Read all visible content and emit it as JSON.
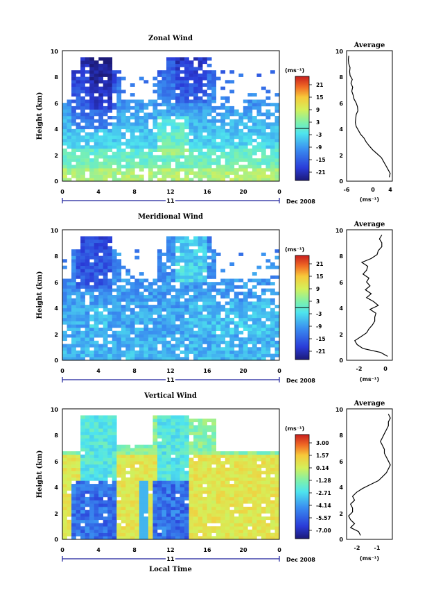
{
  "chart_data": [
    {
      "type": "heatmap",
      "title": "Zonal Wind",
      "ylabel": "Height (km)",
      "ylim": [
        0,
        10
      ],
      "xlim": [
        0,
        24
      ],
      "x_ticks": [
        "0",
        "4",
        "8",
        "12",
        "16",
        "20",
        "0"
      ],
      "y_ticks": [
        "0",
        "2",
        "4",
        "6",
        "8",
        "10"
      ],
      "date_day": "11",
      "date_label": "Dec 2008",
      "colorbar_unit": "(ms⁻¹)",
      "colorbar_ticks": [
        "21",
        "15",
        "9",
        "3",
        "-3",
        "-9",
        "-15",
        "-21"
      ],
      "colorbar_range": [
        -24,
        24
      ],
      "average": {
        "title": "Average",
        "xlabel": "(ms⁻¹)",
        "x_ticks": [
          "-6",
          "0",
          "4"
        ],
        "xlim": [
          -6,
          4.5
        ],
        "heights": [
          0.3,
          0.6,
          0.9,
          1.2,
          1.5,
          1.8,
          2.1,
          2.4,
          2.7,
          3.0,
          3.3,
          3.6,
          3.9,
          4.2,
          4.5,
          4.8,
          5.1,
          5.4,
          5.7,
          6.0,
          6.3,
          6.6,
          6.9,
          7.2,
          7.5,
          7.8,
          8.1,
          8.4,
          8.7,
          9.0,
          9.3,
          9.6
        ],
        "values": [
          3.8,
          4.0,
          3.5,
          3.0,
          2.5,
          2.0,
          1.0,
          0.0,
          -0.8,
          -1.5,
          -2.0,
          -2.8,
          -3.3,
          -3.8,
          -4.0,
          -3.9,
          -3.8,
          -3.4,
          -3.5,
          -3.8,
          -4.3,
          -4.5,
          -4.8,
          -4.6,
          -5.0,
          -4.7,
          -5.2,
          -5.3,
          -5.2,
          -5.5,
          -5.6,
          -5.5
        ]
      }
    },
    {
      "type": "heatmap",
      "title": "Meridional Wind",
      "ylabel": "Height (km)",
      "ylim": [
        0,
        10
      ],
      "xlim": [
        0,
        24
      ],
      "x_ticks": [
        "0",
        "4",
        "8",
        "12",
        "16",
        "20",
        "0"
      ],
      "y_ticks": [
        "0",
        "2",
        "4",
        "6",
        "8",
        "10"
      ],
      "date_day": "11",
      "date_label": "Dec 2008",
      "colorbar_unit": "(ms⁻¹)",
      "colorbar_ticks": [
        "21",
        "15",
        "9",
        "3",
        "-3",
        "-9",
        "-15",
        "-21"
      ],
      "colorbar_range": [
        -24,
        24
      ],
      "average": {
        "title": "Average",
        "xlabel": "(ms⁻¹)",
        "x_ticks": [
          "-2",
          "0"
        ],
        "xlim": [
          -3.3,
          0.6
        ],
        "heights": [
          0.3,
          0.6,
          0.9,
          1.2,
          1.5,
          1.8,
          2.1,
          2.4,
          2.7,
          3.0,
          3.3,
          3.6,
          3.9,
          4.2,
          4.5,
          4.8,
          5.1,
          5.4,
          5.7,
          6.0,
          6.3,
          6.6,
          6.9,
          7.2,
          7.5,
          7.8,
          8.1,
          8.4,
          8.7,
          9.0,
          9.3,
          9.6
        ],
        "values": [
          0.2,
          -0.4,
          -1.9,
          -2.4,
          -2.6,
          -2.1,
          -1.6,
          -1.4,
          -1.1,
          -0.9,
          -0.9,
          -0.8,
          -1.3,
          -0.6,
          -1.0,
          -1.6,
          -1.2,
          -1.7,
          -1.3,
          -1.6,
          -1.4,
          -1.9,
          -1.6,
          -1.5,
          -2.0,
          -1.2,
          -0.7,
          -0.6,
          -0.3,
          -0.3,
          -0.5,
          -0.3
        ]
      }
    },
    {
      "type": "heatmap",
      "title": "Vertical Wind",
      "ylabel": "Height (km)",
      "xlabel": "Local Time",
      "ylim": [
        0,
        10
      ],
      "xlim": [
        0,
        24
      ],
      "x_ticks": [
        "0",
        "4",
        "8",
        "12",
        "16",
        "20",
        "0"
      ],
      "y_ticks": [
        "0",
        "2",
        "4",
        "6",
        "8",
        "10"
      ],
      "date_day": "11",
      "date_label": "Dec 2008",
      "colorbar_unit": "(ms⁻¹)",
      "colorbar_ticks": [
        "3.00",
        "1.57",
        "0.14",
        "-1.28",
        "-2.71",
        "-4.14",
        "-5.57",
        "-7.00"
      ],
      "colorbar_range": [
        -7.7,
        3.7
      ],
      "average": {
        "title": "Average",
        "xlabel": "(ms⁻¹)",
        "x_ticks": [
          "-2",
          "-1"
        ],
        "xlim": [
          -2.6,
          -0.3
        ],
        "heights": [
          0.3,
          0.6,
          0.9,
          1.2,
          1.5,
          1.8,
          2.1,
          2.4,
          2.7,
          3.0,
          3.3,
          3.6,
          3.9,
          4.2,
          4.5,
          4.8,
          5.1,
          5.4,
          5.7,
          6.0,
          6.3,
          6.6,
          6.9,
          7.2,
          7.5,
          7.8,
          8.1,
          8.4,
          8.7,
          9.0,
          9.3,
          9.6
        ],
        "values": [
          -1.9,
          -2.0,
          -2.4,
          -2.2,
          -2.4,
          -2.5,
          -2.3,
          -2.3,
          -2.4,
          -2.2,
          -2.3,
          -2.1,
          -1.8,
          -1.4,
          -1.0,
          -0.8,
          -0.6,
          -0.5,
          -0.4,
          -0.5,
          -0.6,
          -0.7,
          -0.7,
          -0.8,
          -0.9,
          -0.8,
          -0.7,
          -0.6,
          -0.5,
          -0.5,
          -0.4,
          -0.5
        ]
      }
    }
  ]
}
